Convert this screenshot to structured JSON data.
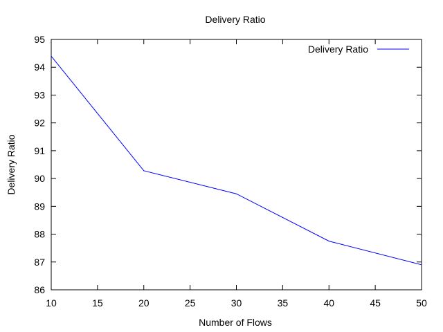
{
  "chart_data": {
    "type": "line",
    "title": "Delivery Ratio",
    "xlabel": "Number of Flows",
    "ylabel": "Delivery Ratio",
    "xlim": [
      10,
      50
    ],
    "ylim": [
      86,
      95
    ],
    "xticks": [
      10,
      15,
      20,
      25,
      30,
      35,
      40,
      45,
      50
    ],
    "yticks": [
      86,
      87,
      88,
      89,
      90,
      91,
      92,
      93,
      94,
      95
    ],
    "grid": false,
    "legend_position": "top-right",
    "series": [
      {
        "name": "Delivery Ratio",
        "color": "#0000ff",
        "x": [
          10,
          20,
          30,
          40,
          50
        ],
        "y": [
          94.4,
          90.28,
          89.45,
          87.75,
          86.9
        ]
      }
    ]
  }
}
